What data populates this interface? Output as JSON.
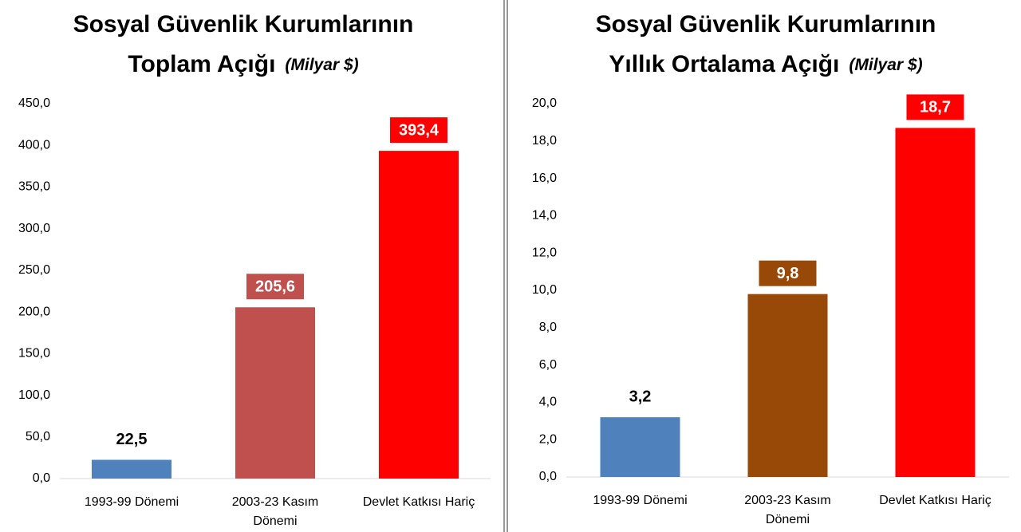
{
  "chart_data": [
    {
      "type": "bar",
      "title": [
        "Sosyal Güvenlik Kurumlarının",
        "Toplam Açığı"
      ],
      "unit": "(Milyar $)",
      "categories": [
        [
          "1993-99 Dönemi"
        ],
        [
          "2003-23 Kasım",
          "Dönemi"
        ],
        [
          "Devlet Katkısı Hariç"
        ]
      ],
      "values": [
        22.5,
        205.6,
        393.4
      ],
      "value_labels": [
        "22,5",
        "205,6",
        "393,4"
      ],
      "value_label_boxes": [
        false,
        true,
        true
      ],
      "colors": [
        "#4f81bd",
        "#c0504d",
        "#ff0000"
      ],
      "ylim": [
        0,
        450
      ],
      "yticks": [
        {
          "value": 0,
          "label": "0,0"
        },
        {
          "value": 50,
          "label": "50,0"
        },
        {
          "value": 100,
          "label": "100,0"
        },
        {
          "value": 150,
          "label": "150,0"
        },
        {
          "value": 200,
          "label": "200,0"
        },
        {
          "value": 250,
          "label": "250,0"
        },
        {
          "value": 300,
          "label": "300,0"
        },
        {
          "value": 350,
          "label": "350,0"
        },
        {
          "value": 400,
          "label": "400,0"
        },
        {
          "value": 450,
          "label": "450,0"
        }
      ]
    },
    {
      "type": "bar",
      "title": [
        "Sosyal Güvenlik Kurumlarının",
        "Yıllık Ortalama Açığı"
      ],
      "unit": "(Milyar $)",
      "categories": [
        [
          "1993-99 Dönemi"
        ],
        [
          "2003-23 Kasım",
          "Dönemi"
        ],
        [
          "Devlet Katkısı Hariç"
        ]
      ],
      "values": [
        3.2,
        9.8,
        18.7
      ],
      "value_labels": [
        "3,2",
        "9,8",
        "18,7"
      ],
      "value_label_boxes": [
        false,
        true,
        true
      ],
      "colors": [
        "#4f81bd",
        "#984807",
        "#ff0000"
      ],
      "ylim": [
        0,
        20
      ],
      "yticks": [
        {
          "value": 0,
          "label": "0,0"
        },
        {
          "value": 2,
          "label": "2,0"
        },
        {
          "value": 4,
          "label": "4,0"
        },
        {
          "value": 6,
          "label": "6,0"
        },
        {
          "value": 8,
          "label": "8,0"
        },
        {
          "value": 10,
          "label": "10,0"
        },
        {
          "value": 12,
          "label": "12,0"
        },
        {
          "value": 14,
          "label": "14,0"
        },
        {
          "value": 16,
          "label": "16,0"
        },
        {
          "value": 18,
          "label": "18,0"
        },
        {
          "value": 20,
          "label": "20,0"
        }
      ]
    }
  ]
}
